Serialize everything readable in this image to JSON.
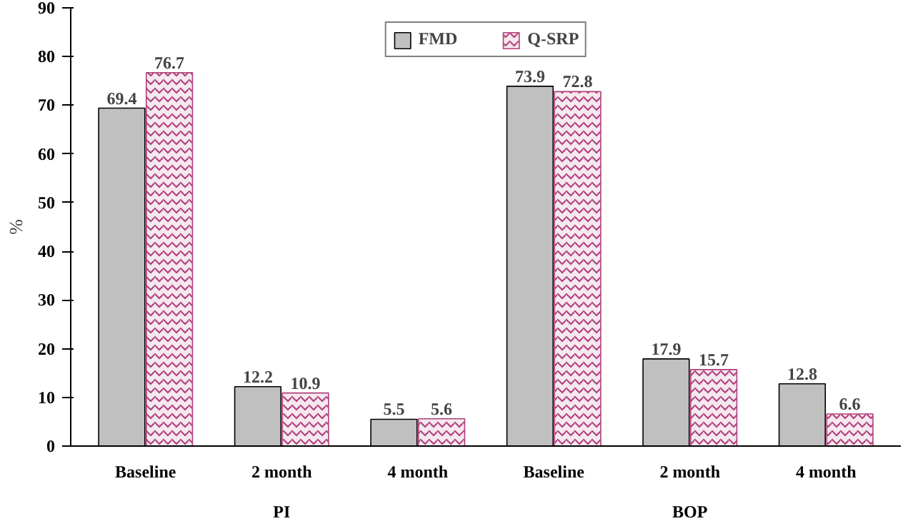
{
  "chart_data": {
    "type": "bar",
    "ylabel": "%",
    "categories": [
      "Baseline",
      "2 month",
      "4 month",
      "Baseline",
      "2 month",
      "4 month"
    ],
    "annotations": [
      "PI",
      "BOP"
    ],
    "series": [
      {
        "name": "FMD",
        "color": "#c0c0c0",
        "values": [
          69.4,
          12.2,
          5.5,
          73.9,
          17.9,
          12.8
        ]
      },
      {
        "name": "Q-SRP",
        "color": "#b0407a",
        "values": [
          76.7,
          10.9,
          5.6,
          72.8,
          15.7,
          6.6
        ]
      }
    ],
    "ylim": [
      0,
      90
    ],
    "yticks": [
      0,
      10,
      20,
      30,
      40,
      50,
      60,
      70,
      80,
      90
    ],
    "data_labels": true,
    "grid": false,
    "legend": "top"
  }
}
